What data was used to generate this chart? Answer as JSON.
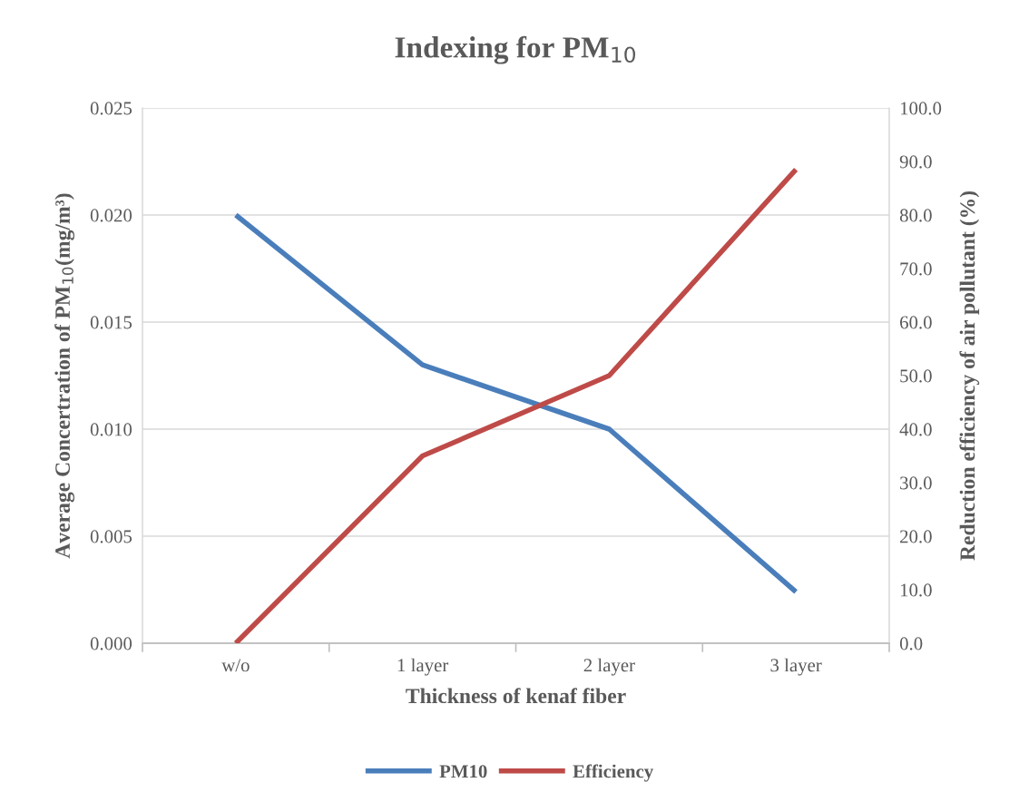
{
  "chart_data": {
    "type": "line",
    "title": "Indexing for PM$_{10}$",
    "xlabel": "Thickness of kenaf fiber",
    "ylabel": "Average Concertration of PM$_{10}$(mg/m³)",
    "y2label": "Reduction efficiency of air pollutant (%)",
    "categories": [
      "w/o",
      "1 layer",
      "2 layer",
      "3 layer"
    ],
    "series": [
      {
        "name": "PM10",
        "color": "#4a7ebb",
        "values": [
          0.02,
          0.013,
          0.01,
          0.0024
        ]
      },
      {
        "name": "Efficiency",
        "color": "#be4b48",
        "values": [
          0,
          35,
          50,
          88.5
        ],
        "axis": "y2"
      }
    ],
    "ylim": [
      0,
      0.025
    ],
    "yticks": [
      {
        "value": 0,
        "label": "0.000"
      },
      {
        "value": 0.005,
        "label": "0.005"
      },
      {
        "value": 0.01,
        "label": "0.010"
      },
      {
        "value": 0.015,
        "label": "0.015"
      },
      {
        "value": 0.02,
        "label": "0.020"
      },
      {
        "value": 0.025,
        "label": "0.025"
      }
    ],
    "y2lim": [
      0,
      100
    ],
    "y2ticks": [
      {
        "value": 0,
        "label": "0.0"
      },
      {
        "value": 10,
        "label": "10.0"
      },
      {
        "value": 20,
        "label": "20.0"
      },
      {
        "value": 30,
        "label": "30.0"
      },
      {
        "value": 40,
        "label": "40.0"
      },
      {
        "value": 50,
        "label": "50.0"
      },
      {
        "value": 60,
        "label": "60.0"
      },
      {
        "value": 70,
        "label": "70.0"
      },
      {
        "value": 80,
        "label": "80.0"
      },
      {
        "value": 90,
        "label": "90.0"
      },
      {
        "value": 100,
        "label": "100.0"
      }
    ],
    "grid": "y",
    "legend": "bottom",
    "marker": "none",
    "line_style": "solid"
  }
}
